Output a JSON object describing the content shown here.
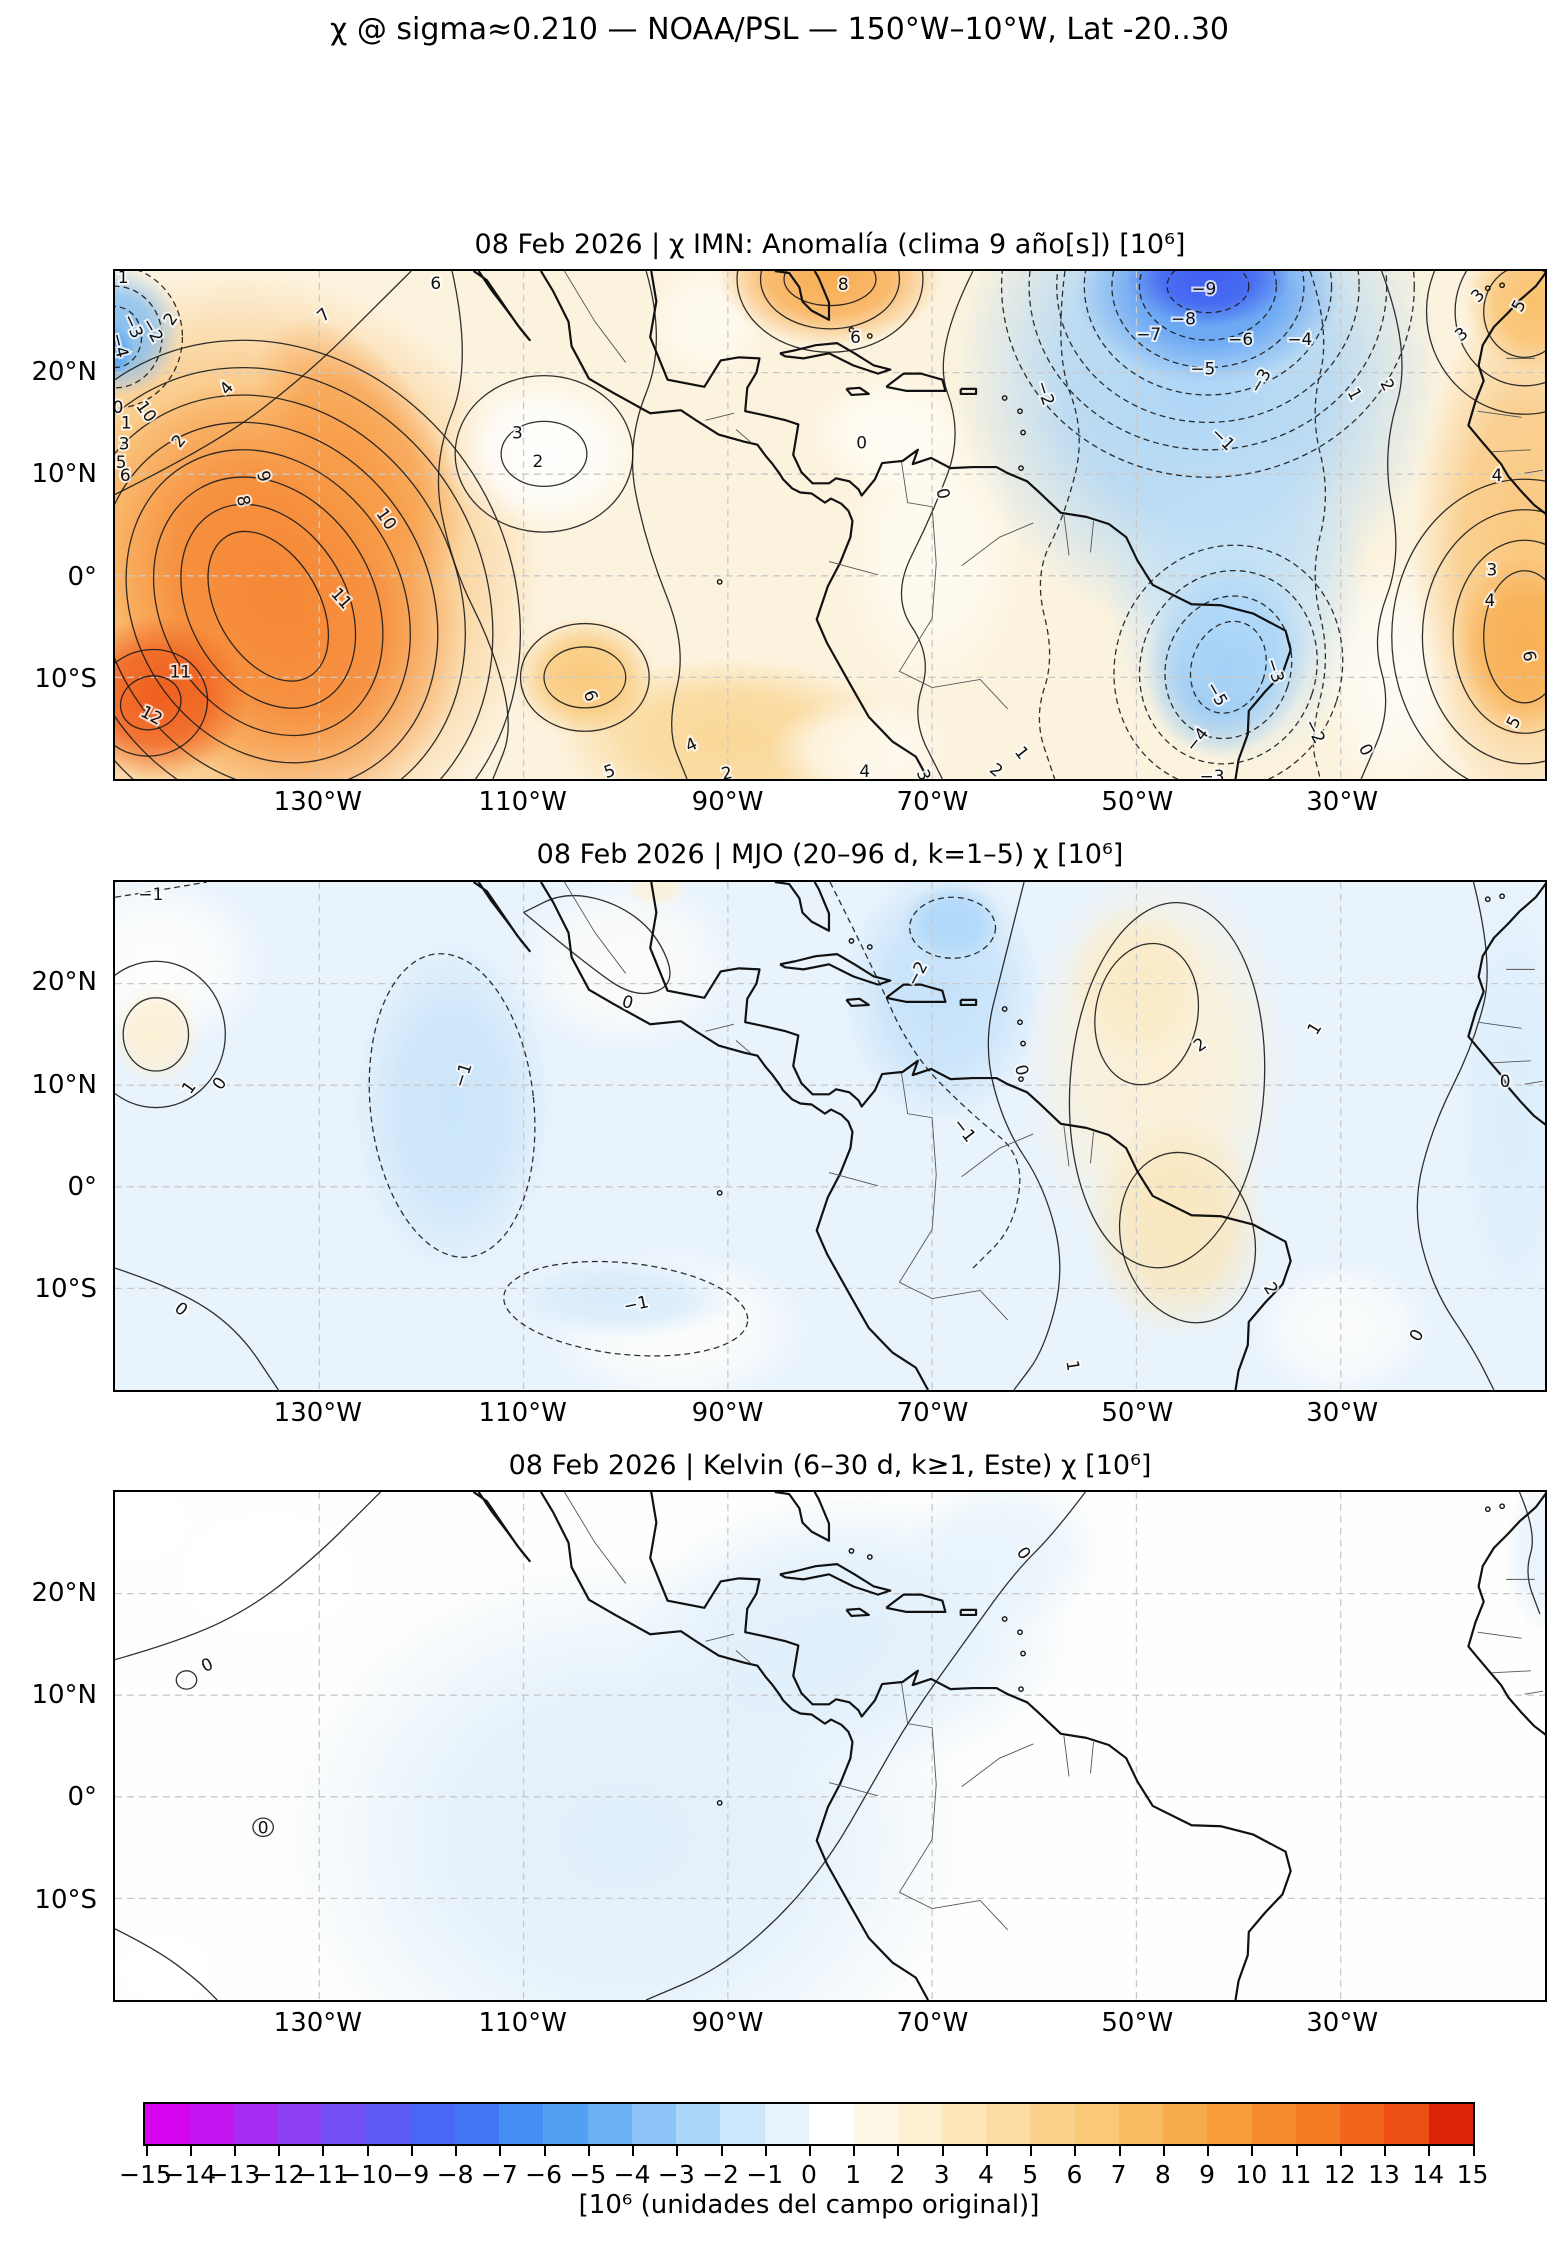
{
  "main_title": "χ @ sigma≈0.210 — NOAA/PSL — 150°W–10°W, Lat -20..30",
  "axes": {
    "x_tick_labels": [
      "130°W",
      "110°W",
      "90°W",
      "70°W",
      "50°W",
      "30°W"
    ],
    "x_tick_lons": [
      -130,
      -110,
      -90,
      -70,
      -50,
      -30
    ],
    "y_tick_labels": [
      "20°N",
      "10°N",
      "0°",
      "10°S"
    ],
    "y_tick_lats": [
      20,
      10,
      0,
      -10
    ],
    "lon_range": [
      -150,
      -10
    ],
    "lat_range": [
      -20,
      30
    ]
  },
  "colorbar": {
    "label": "[10⁶ (unidades del campo original)]",
    "tick_labels": [
      "−15",
      "−14",
      "−13",
      "−12",
      "−11",
      "−10",
      "−9",
      "−8",
      "−7",
      "−6",
      "−5",
      "−4",
      "−3",
      "−2",
      "−1",
      "0",
      "1",
      "2",
      "3",
      "4",
      "5",
      "6",
      "7",
      "8",
      "9",
      "10",
      "11",
      "12",
      "13",
      "14",
      "15"
    ],
    "tick_values": [
      -15,
      -14,
      -13,
      -12,
      -11,
      -10,
      -9,
      -8,
      -7,
      -6,
      -5,
      -4,
      -3,
      -2,
      -1,
      0,
      1,
      2,
      3,
      4,
      5,
      6,
      7,
      8,
      9,
      10,
      11,
      12,
      13,
      14,
      15
    ],
    "colors": [
      "#D603EE",
      "#C215F0",
      "#A72CF2",
      "#8C3FF3",
      "#744FF4",
      "#5E5AF4",
      "#4A66F4",
      "#4277F3",
      "#478EF2",
      "#53A0F3",
      "#6BB1F5",
      "#8CC4F7",
      "#ACD6F9",
      "#CCE6FB",
      "#E9F3FD",
      "#FFFFFF",
      "#FEF8E9",
      "#FDF0D2",
      "#FCE6BA",
      "#FBDCA2",
      "#FAD28B",
      "#FAC977",
      "#F9BA60",
      "#F8AB4C",
      "#F89B3B",
      "#F68B2E",
      "#F47A24",
      "#F1651D",
      "#ED4F15",
      "#DC2208"
    ]
  },
  "chart_data": [
    {
      "type": "filled_contour_map",
      "title": "08 Feb 2026 | χ IMN: Anomalía (clima 9 año[s]) [10⁶]",
      "units": "10⁶ (unidades del campo original)",
      "lon_range": [
        -150,
        -10
      ],
      "lat_range": [
        -20,
        30
      ],
      "contour_interval": 1,
      "extrema": [
        {
          "lon": -146,
          "lat": -13,
          "value": 12
        },
        {
          "lon": -135,
          "lat": -3,
          "value": 11
        },
        {
          "lon": -79,
          "lat": 29,
          "value": 8
        },
        {
          "lon": -12,
          "lat": -6,
          "value": 7
        },
        {
          "lon": -108,
          "lat": 12,
          "value": 2
        },
        {
          "lon": -150,
          "lat": 23,
          "value": -4
        },
        {
          "lon": -43,
          "lat": 29,
          "value": -9
        },
        {
          "lon": -41,
          "lat": -9,
          "value": -5
        }
      ],
      "contour_labels": [
        {
          "v": "1",
          "lon": -149.2,
          "lat": 29.4
        },
        {
          "v": "−3",
          "lon": -148.2,
          "lat": 24.6,
          "r": 65
        },
        {
          "v": "−4",
          "lon": -149.5,
          "lat": 22.7,
          "r": 75
        },
        {
          "v": "−2",
          "lon": -146.3,
          "lat": 24.2,
          "r": 60
        },
        {
          "v": "2",
          "lon": -144.6,
          "lat": 25.3,
          "r": -55
        },
        {
          "v": "10",
          "lon": -146.9,
          "lat": 16.2,
          "r": 55
        },
        {
          "v": "0",
          "lon": -149.7,
          "lat": 16.6
        },
        {
          "v": "1",
          "lon": -148.9,
          "lat": 15.1
        },
        {
          "v": "3",
          "lon": -149.1,
          "lat": 13.0
        },
        {
          "v": "5",
          "lon": -149.4,
          "lat": 11.2
        },
        {
          "v": "6",
          "lon": -149.0,
          "lat": 9.9
        },
        {
          "v": "7",
          "lon": -129.6,
          "lat": 25.7,
          "r": -42
        },
        {
          "v": "4",
          "lon": -139.1,
          "lat": 18.5,
          "r": -48
        },
        {
          "v": "2",
          "lon": -143.8,
          "lat": 13.3,
          "r": -52
        },
        {
          "v": "8",
          "lon": -137.4,
          "lat": 7.4,
          "r": 78
        },
        {
          "v": "9",
          "lon": -135.4,
          "lat": 9.8,
          "r": 72
        },
        {
          "v": "10",
          "lon": -123.4,
          "lat": 5.6,
          "r": 55
        },
        {
          "v": "11",
          "lon": -127.8,
          "lat": -2.2,
          "r": 48
        },
        {
          "v": "11",
          "lon": -143.6,
          "lat": -9.4
        },
        {
          "v": "12",
          "lon": -146.4,
          "lat": -13.7,
          "r": 28
        },
        {
          "v": "6",
          "lon": -118.6,
          "lat": 28.8
        },
        {
          "v": "3",
          "lon": -110.6,
          "lat": 14.1
        },
        {
          "v": "2",
          "lon": -108.6,
          "lat": 11.3
        },
        {
          "v": "6",
          "lon": -103.4,
          "lat": -11.8,
          "r": 70
        },
        {
          "v": "5",
          "lon": -101.6,
          "lat": -19.2,
          "r": -18
        },
        {
          "v": "4",
          "lon": -93.6,
          "lat": -16.6,
          "r": -25
        },
        {
          "v": "2",
          "lon": -90.1,
          "lat": -19.4,
          "r": -12
        },
        {
          "v": "8",
          "lon": -78.7,
          "lat": 28.7
        },
        {
          "v": "6",
          "lon": -77.5,
          "lat": 23.5
        },
        {
          "v": "0",
          "lon": -76.9,
          "lat": 13.1
        },
        {
          "v": "0",
          "lon": -68.9,
          "lat": 8.1,
          "r": 78
        },
        {
          "v": "2",
          "lon": -63.7,
          "lat": -19.1,
          "r": 40
        },
        {
          "v": "1",
          "lon": -61.2,
          "lat": -17.4,
          "r": 52
        },
        {
          "v": "4",
          "lon": -76.6,
          "lat": -19.2
        },
        {
          "v": "3",
          "lon": -70.8,
          "lat": -19.6,
          "r": 70
        },
        {
          "v": "−2",
          "lon": -58.9,
          "lat": 18.0,
          "r": 72
        },
        {
          "v": "−1",
          "lon": -41.5,
          "lat": 13.5,
          "r": 45
        },
        {
          "v": "−3",
          "lon": -37.9,
          "lat": 19.2,
          "r": -60
        },
        {
          "v": "−5",
          "lon": -43.5,
          "lat": 20.4
        },
        {
          "v": "−6",
          "lon": -39.8,
          "lat": 23.3
        },
        {
          "v": "−7",
          "lon": -48.8,
          "lat": 23.8
        },
        {
          "v": "−8",
          "lon": -45.4,
          "lat": 25.3
        },
        {
          "v": "−9",
          "lon": -43.4,
          "lat": 28.3
        },
        {
          "v": "−4",
          "lon": -34.0,
          "lat": 23.3
        },
        {
          "v": "1",
          "lon": -28.6,
          "lat": 17.9,
          "r": 62
        },
        {
          "v": "2",
          "lon": -25.4,
          "lat": 18.8,
          "r": 62
        },
        {
          "v": "3",
          "lon": -18.2,
          "lat": 23.8,
          "r": -38
        },
        {
          "v": "−3",
          "lon": -36.4,
          "lat": -9.3,
          "r": 72
        },
        {
          "v": "−5",
          "lon": -42.1,
          "lat": -11.6,
          "r": 60
        },
        {
          "v": "−4",
          "lon": -44.1,
          "lat": -16.1,
          "r": -52
        },
        {
          "v": "−2",
          "lon": -32.5,
          "lat": -15.3,
          "r": 62
        },
        {
          "v": "−3",
          "lon": -42.6,
          "lat": -19.7
        },
        {
          "v": "0",
          "lon": -27.5,
          "lat": -17.1,
          "r": 62
        },
        {
          "v": "4",
          "lon": -14.7,
          "lat": 9.9
        },
        {
          "v": "3",
          "lon": -15.2,
          "lat": 0.6
        },
        {
          "v": "4",
          "lon": -15.4,
          "lat": -2.4
        },
        {
          "v": "6",
          "lon": -11.5,
          "lat": -7.9,
          "r": 80
        },
        {
          "v": "5",
          "lon": -13.1,
          "lat": -14.4,
          "r": -62
        },
        {
          "v": "5",
          "lon": -12.6,
          "lat": 26.6,
          "r": -60
        },
        {
          "v": "3",
          "lon": -16.6,
          "lat": 27.6,
          "r": -45
        }
      ]
    },
    {
      "type": "filled_contour_map",
      "title": "08 Feb 2026 | MJO (20–96 d, k=1–5) χ [10⁶]",
      "units": "10⁶ (unidades del campo original)",
      "lon_range": [
        -150,
        -10
      ],
      "lat_range": [
        -20,
        30
      ],
      "contour_interval": 1,
      "extrema": [
        {
          "lon": -146,
          "lat": 15,
          "value": 1
        },
        {
          "lon": -117,
          "lat": 8,
          "value": -1
        },
        {
          "lon": -68,
          "lat": 26,
          "value": -2
        },
        {
          "lon": -48,
          "lat": 12,
          "value": 2
        },
        {
          "lon": -45,
          "lat": -5,
          "value": 2
        }
      ],
      "contour_labels": [
        {
          "v": "−1",
          "lon": -146.5,
          "lat": 28.8
        },
        {
          "v": "1",
          "lon": -142.8,
          "lat": 9.8,
          "r": -55
        },
        {
          "v": "0",
          "lon": -139.8,
          "lat": 10.2,
          "r": -55
        },
        {
          "v": "−1",
          "lon": -116.0,
          "lat": 11.0,
          "r": -72
        },
        {
          "v": "0",
          "lon": -99.8,
          "lat": 18.2,
          "r": 15
        },
        {
          "v": "−1",
          "lon": -99.0,
          "lat": -11.5,
          "r": -12
        },
        {
          "v": "0",
          "lon": -143.5,
          "lat": -12.0,
          "r": 38
        },
        {
          "v": "−2",
          "lon": -71.5,
          "lat": 21.0,
          "r": -62
        },
        {
          "v": "−1",
          "lon": -66.8,
          "lat": 5.6,
          "r": 52
        },
        {
          "v": "0",
          "lon": -61.2,
          "lat": 11.5,
          "r": 78
        },
        {
          "v": "2",
          "lon": -43.8,
          "lat": 14.0,
          "r": -35
        },
        {
          "v": "1",
          "lon": -32.6,
          "lat": 15.6,
          "r": -58
        },
        {
          "v": "2",
          "lon": -36.8,
          "lat": -10.0,
          "r": 58
        },
        {
          "v": "1",
          "lon": -56.2,
          "lat": -17.6,
          "r": 82
        },
        {
          "v": "0",
          "lon": -22.6,
          "lat": -14.6,
          "r": -60
        },
        {
          "v": "0",
          "lon": -13.9,
          "lat": 10.4
        }
      ]
    },
    {
      "type": "filled_contour_map",
      "title": "08 Feb 2026 | Kelvin (6–30 d, k≥1, Este) χ [10⁶]",
      "units": "10⁶ (unidades del campo original)",
      "lon_range": [
        -150,
        -10
      ],
      "lat_range": [
        -20,
        30
      ],
      "contour_interval": 1,
      "extrema": [
        {
          "lon": -95,
          "lat": 0,
          "value": 0
        }
      ],
      "contour_labels": [
        {
          "v": "0",
          "lon": -61.0,
          "lat": 24.0,
          "r": 55
        },
        {
          "v": "0",
          "lon": -141.0,
          "lat": 13.0,
          "r": -25
        },
        {
          "v": "0",
          "lon": -135.5,
          "lat": -3.0
        }
      ]
    }
  ]
}
